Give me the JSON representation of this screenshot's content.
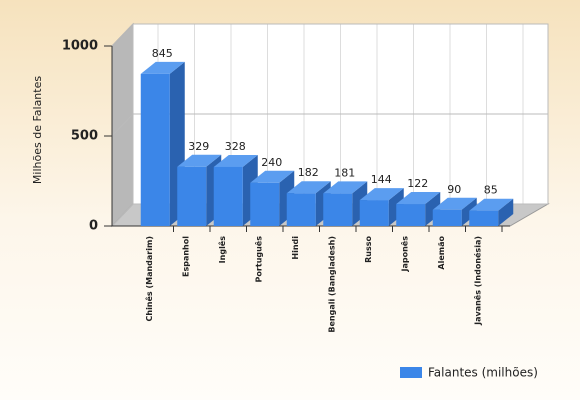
{
  "chart_data": {
    "type": "bar3d",
    "y_label": "Milhões de Falantes",
    "categories": [
      "Chinês (Mandarim)",
      "Espanhol",
      "Inglês",
      "Português",
      "Hindi",
      "Bengali (Bangladesh)",
      "Russo",
      "Japonês",
      "Alemão",
      "Javanês (Indonésia)"
    ],
    "series": [
      {
        "name": "Falantes (milhões)",
        "color": "#3b86e8",
        "values": [
          845,
          329,
          328,
          240,
          182,
          181,
          144,
          122,
          90,
          85
        ]
      }
    ],
    "ylim": [
      0,
      1000
    ],
    "yticks": [
      0,
      500,
      1000
    ],
    "grid": true,
    "legend": "bottom-right"
  }
}
